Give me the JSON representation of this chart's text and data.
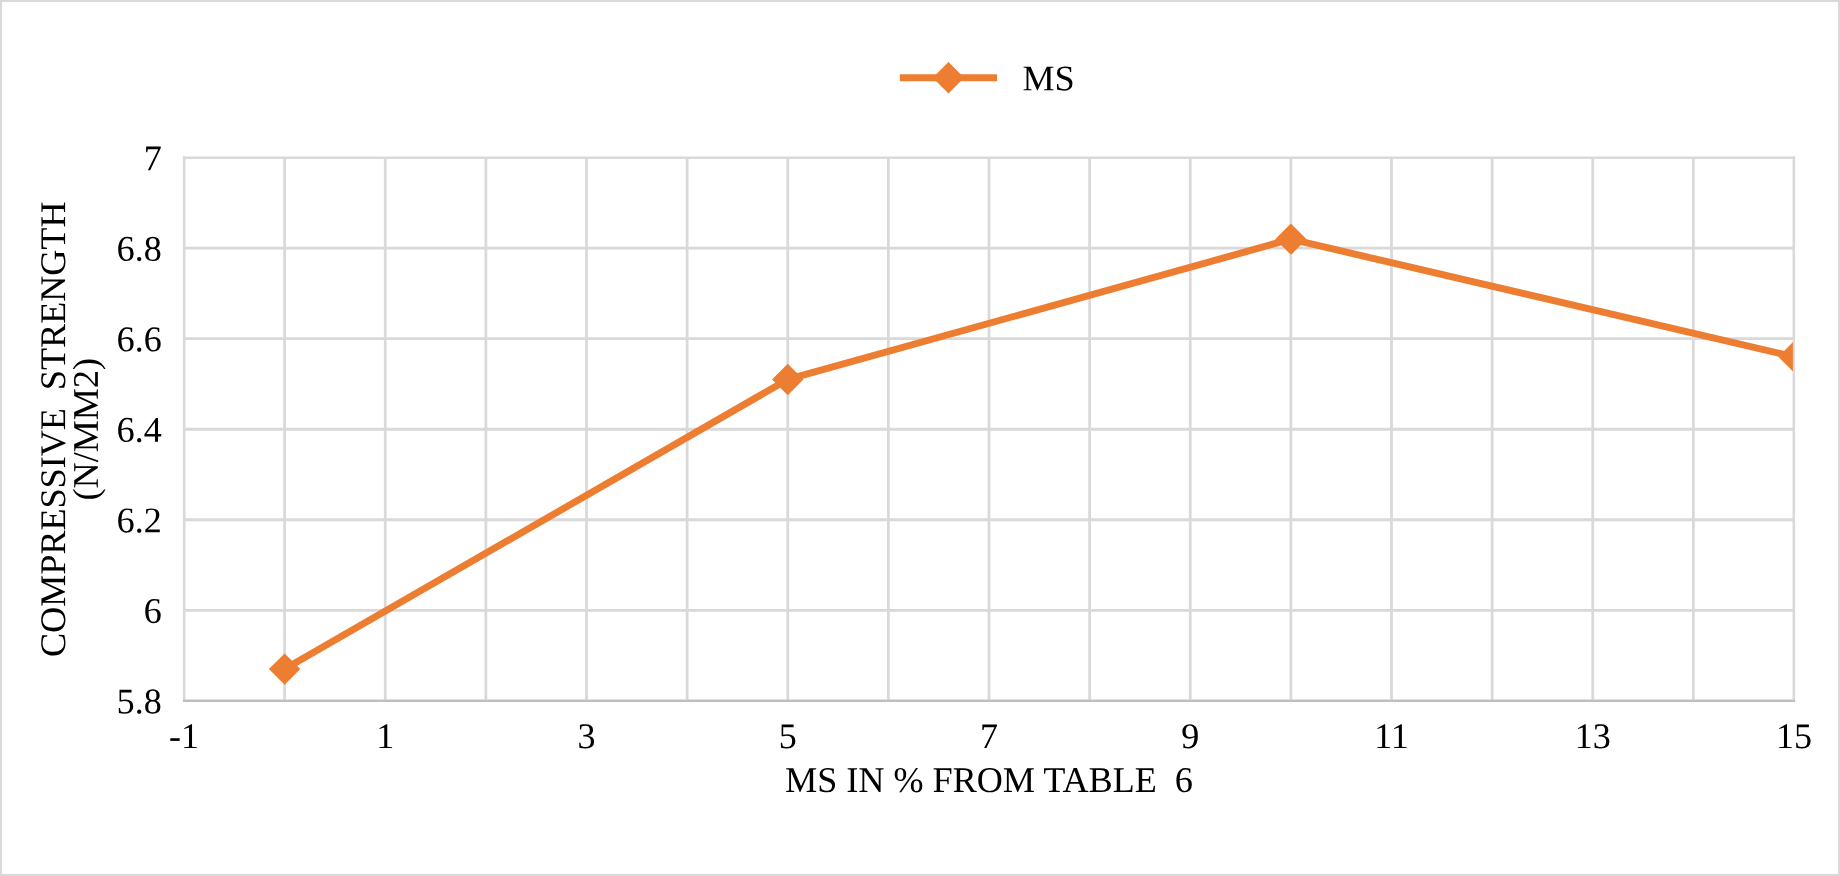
{
  "chart_data": {
    "type": "line",
    "xlabel": "MS IN % FROM TABLE  6",
    "ylabel": "COMPRESSIVE  STRENGTH\n(N/MM2)",
    "x": [
      0,
      5,
      10,
      15
    ],
    "series": [
      {
        "name": "MS",
        "color": "#ed7d31",
        "values": [
          5.87,
          6.51,
          6.82,
          6.56
        ]
      }
    ],
    "xlim": [
      -1,
      15
    ],
    "xticks": [
      -1,
      {
        "value": 0,
        "label": null
      },
      1,
      {
        "value": 2,
        "label": null
      },
      3,
      {
        "value": 4,
        "label": null
      },
      5,
      {
        "value": 6,
        "label": null
      },
      7,
      {
        "value": 8,
        "label": null
      },
      9,
      {
        "value": 10,
        "label": null
      },
      11,
      {
        "value": 12,
        "label": null
      },
      13,
      {
        "value": 14,
        "label": null
      },
      15
    ],
    "ylim": [
      5.8,
      7
    ],
    "yticks": [
      5.8,
      6,
      6.2,
      6.4,
      6.6,
      6.8,
      7
    ],
    "grid": true,
    "legend": "top",
    "marker": "diamond",
    "line_style": "solid"
  }
}
